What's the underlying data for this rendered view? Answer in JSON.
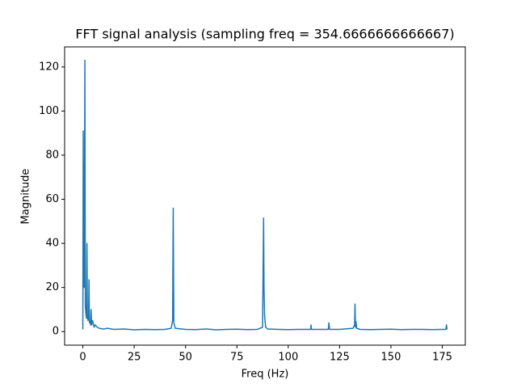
{
  "chart_data": {
    "type": "line",
    "title": "FFT signal analysis (sampling freq = 354.6666666666667)",
    "x_label": "Freq (Hz)",
    "y_label": "Magnitude",
    "x": [
      0,
      0.2,
      0.4,
      0.6,
      0.8,
      1.0,
      1.2,
      1.5,
      1.8,
      2.0,
      2.2,
      2.5,
      2.8,
      3.0,
      3.2,
      3.5,
      3.8,
      4.0,
      4.3,
      4.7,
      5.0,
      5.5,
      6.0,
      7,
      8,
      10,
      12,
      15,
      20,
      25,
      30,
      35,
      40,
      43,
      43.7,
      44.0,
      44.3,
      45,
      50,
      55,
      60,
      65,
      70,
      75,
      80,
      85,
      87.5,
      88.0,
      88.2,
      88.5,
      89,
      90,
      95,
      100,
      105,
      110,
      110.9,
      111.1,
      111.3,
      115,
      119.5,
      119.8,
      120.1,
      125,
      131.5,
      132.3,
      132.5,
      132.7,
      133.0,
      133.3,
      135,
      140,
      145,
      150,
      155,
      160,
      165,
      170,
      175,
      176.8,
      177.0,
      177.33
    ],
    "series": [
      {
        "color": "#1f77b4",
        "values": [
          1,
          91,
          30,
          20,
          60,
          123,
          12,
          8,
          6,
          40,
          8,
          5,
          6,
          23.5,
          4,
          5,
          3,
          10,
          3,
          5,
          4,
          2,
          3,
          2,
          1.5,
          1.2,
          1.5,
          1,
          1.2,
          0.8,
          1,
          0.9,
          1,
          1.5,
          5,
          56,
          4,
          1.5,
          1,
          0.9,
          1.2,
          0.8,
          1,
          1.1,
          0.9,
          1,
          2,
          51.5,
          20,
          7,
          2,
          1.2,
          1,
          0.9,
          1,
          1,
          1,
          3,
          1,
          1,
          1,
          4,
          1,
          1,
          1.5,
          3,
          12.5,
          2,
          4.5,
          1.5,
          1,
          0.9,
          1,
          1.1,
          0.9,
          1,
          1,
          0.9,
          1,
          1,
          3,
          1
        ]
      }
    ],
    "xlim": [
      -8.87,
      186.2
    ],
    "ylim": [
      -6.15,
      129.1
    ],
    "xticks": [
      0,
      25,
      50,
      75,
      100,
      125,
      150,
      175
    ],
    "yticks": [
      0,
      20,
      40,
      60,
      80,
      100,
      120
    ],
    "grid": false
  }
}
